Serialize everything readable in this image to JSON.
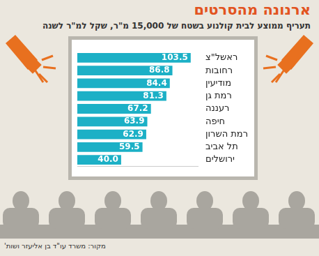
{
  "chart_data": {
    "type": "bar",
    "title": "ארנונה מהסרטים",
    "subtitle": "תעריף ממוצע לבית קולנוע בשטח של 15,000 מ\"ר, שקל למ\"ר לשנה",
    "source": "מקור: משרד עו\"ד בן אליעזר ושות'",
    "categories": [
      "ראשל\"צ",
      "רחובות",
      "מודיעין",
      "רמת גן",
      "רעננה",
      "חיפה",
      "רמת השרון",
      "תל אביב",
      "ירושלים"
    ],
    "values": [
      103.5,
      86.8,
      84.4,
      81.3,
      67.2,
      63.9,
      62.9,
      59.5,
      40.0
    ],
    "value_labels": [
      "103.5",
      "86.8",
      "84.4",
      "81.3",
      "67.2",
      "63.9",
      "62.9",
      "59.5",
      "40.0"
    ],
    "color": "#1cb0c6",
    "orientation": "horizontal",
    "xlim": [
      0,
      110
    ],
    "data_labels": true,
    "tick_labels": "y",
    "grid": false
  }
}
